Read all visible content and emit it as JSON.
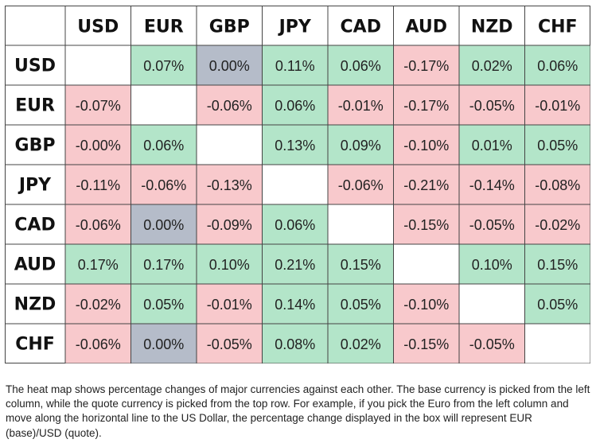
{
  "chart_data": {
    "type": "heatmap",
    "title": "",
    "columns": [
      "USD",
      "EUR",
      "GBP",
      "JPY",
      "CAD",
      "AUD",
      "NZD",
      "CHF"
    ],
    "rows": [
      "USD",
      "EUR",
      "GBP",
      "JPY",
      "CAD",
      "AUD",
      "NZD",
      "CHF"
    ],
    "cells": [
      [
        null,
        "0.07%",
        "0.00%",
        "0.11%",
        "0.06%",
        "-0.17%",
        "0.02%",
        "0.06%"
      ],
      [
        "-0.07%",
        null,
        "-0.06%",
        "0.06%",
        "-0.01%",
        "-0.17%",
        "-0.05%",
        "-0.01%"
      ],
      [
        "-0.00%",
        "0.06%",
        null,
        "0.13%",
        "0.09%",
        "-0.10%",
        "0.01%",
        "0.05%"
      ],
      [
        "-0.11%",
        "-0.06%",
        "-0.13%",
        null,
        "-0.06%",
        "-0.21%",
        "-0.14%",
        "-0.08%"
      ],
      [
        "-0.06%",
        "0.00%",
        "-0.09%",
        "0.06%",
        null,
        "-0.15%",
        "-0.05%",
        "-0.02%"
      ],
      [
        "0.17%",
        "0.17%",
        "0.10%",
        "0.21%",
        "0.15%",
        null,
        "0.10%",
        "0.15%"
      ],
      [
        "-0.02%",
        "0.05%",
        "-0.01%",
        "0.14%",
        "0.05%",
        "-0.10%",
        null,
        "0.05%"
      ],
      [
        "-0.06%",
        "0.00%",
        "-0.05%",
        "0.08%",
        "0.02%",
        "-0.15%",
        "-0.05%",
        null
      ]
    ],
    "colors": {
      "positive": "#b3e5c9",
      "negative": "#f8c9cc",
      "neutral": "#b5bcc9",
      "empty": "#ffffff"
    }
  },
  "caption": "The heat map shows percentage changes of major currencies against each other. The base currency is picked from the left column, while the quote currency is picked from the top row. For example, if you pick the Euro from the left column and move along the horizontal line to the US Dollar, the percentage change displayed in the box will represent EUR (base)/USD (quote)."
}
